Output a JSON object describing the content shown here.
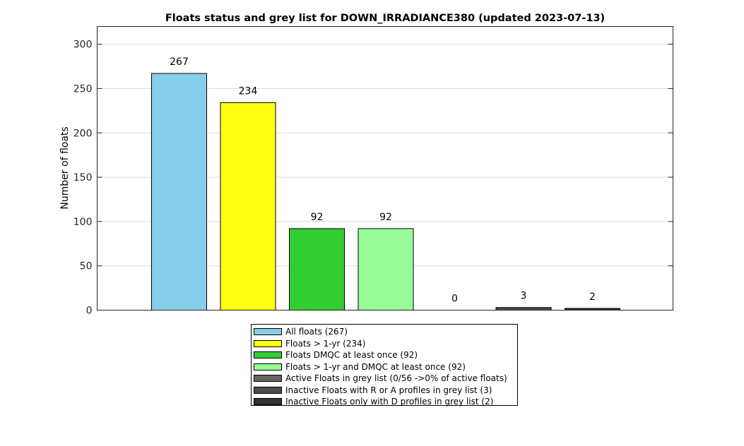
{
  "chart_data": {
    "type": "bar",
    "title": "Floats status and grey list for DOWN_IRRADIANCE380 (updated 2023-07-13)",
    "xlabel": "",
    "ylabel": "Number of floats",
    "ylim": [
      0,
      320
    ],
    "yticks": [
      0,
      50,
      100,
      150,
      200,
      250,
      300
    ],
    "grid": true,
    "legend_position": "bottom-center",
    "bars": [
      {
        "label": "All floats (267)",
        "value": 267,
        "display": "267",
        "color": "#87ceeb"
      },
      {
        "label": "Floats > 1-yr (234)",
        "value": 234,
        "display": "234",
        "color": "#ffff11"
      },
      {
        "label": "Floats DMQC at least once (92)",
        "value": 92,
        "display": "92",
        "color": "#32cd32"
      },
      {
        "label": "Floats > 1-yr and DMQC at least once (92)",
        "value": 92,
        "display": "92",
        "color": "#98fb98"
      },
      {
        "label": "Active Floats in grey list (0/56 ->0% of active floats)",
        "value": 0,
        "display": "0",
        "color": "#666666"
      },
      {
        "label": "Inactive Floats with R or A profiles in grey list (3)",
        "value": 3,
        "display": "3",
        "color": "#4d4d4d"
      },
      {
        "label": "Inactive Floats only with D profiles in grey list (2)",
        "value": 2,
        "display": "2",
        "color": "#333333"
      }
    ]
  }
}
